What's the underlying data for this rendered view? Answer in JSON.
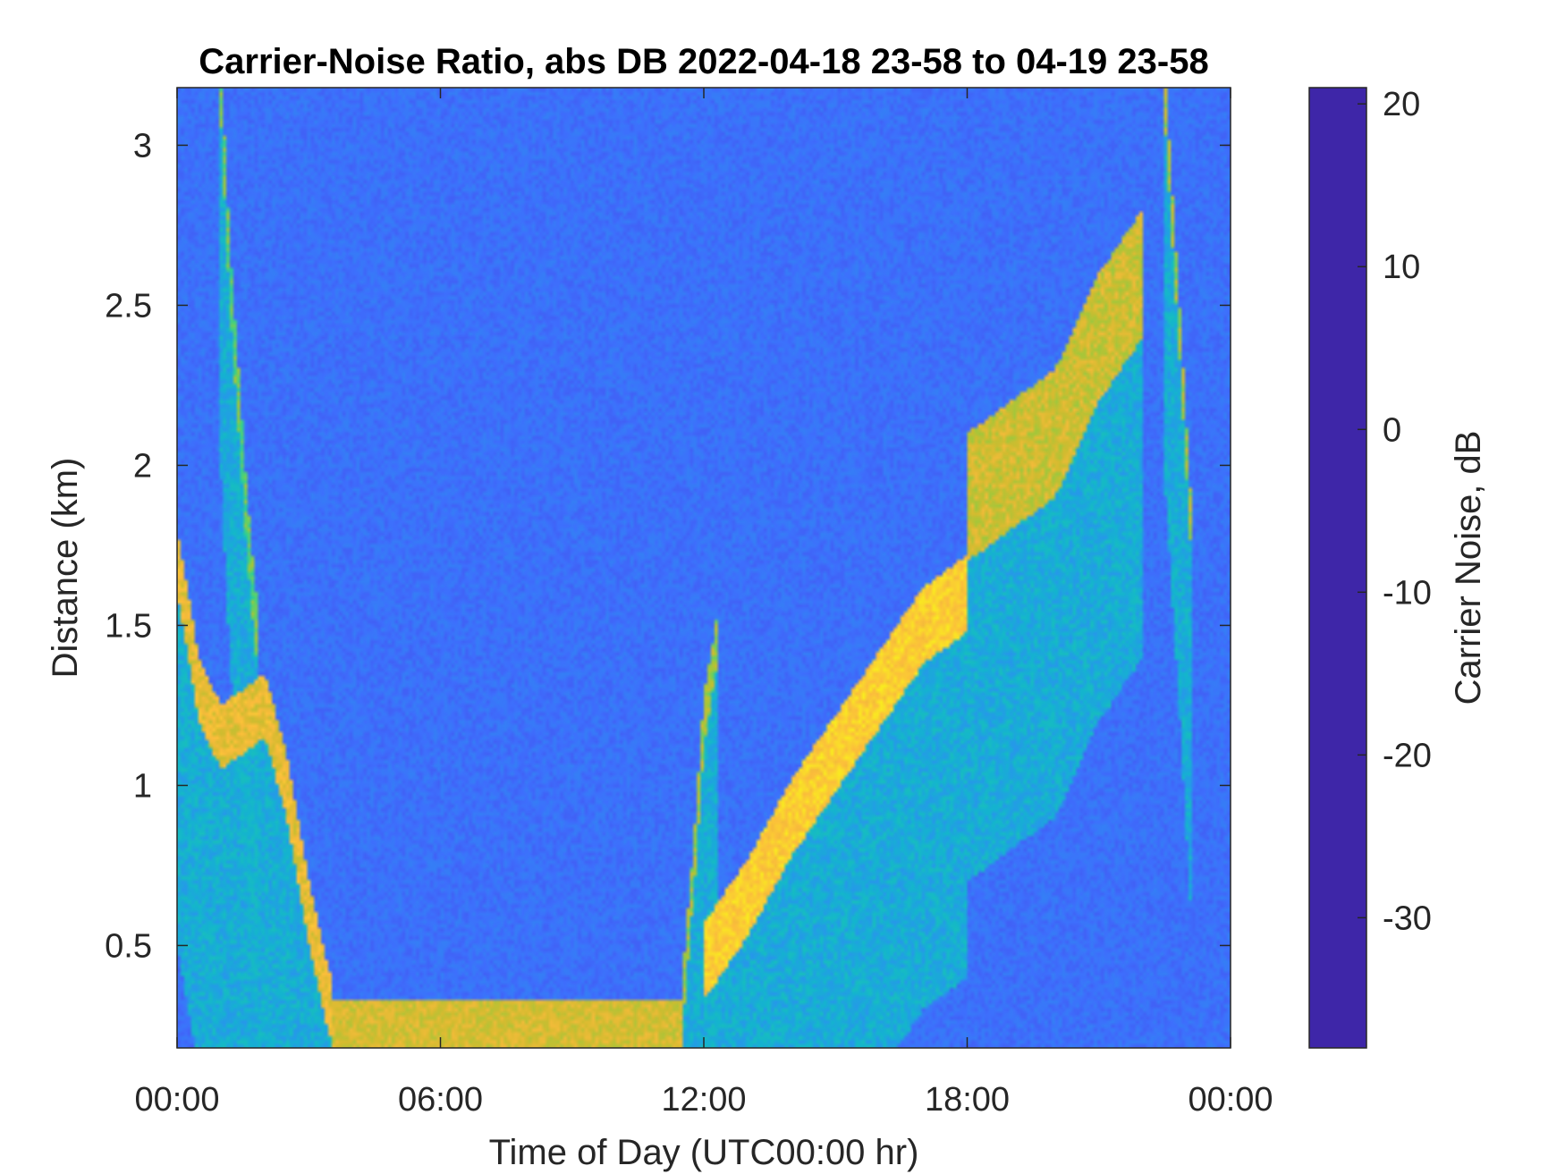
{
  "chart_data": {
    "type": "heatmap",
    "title": "Carrier-Noise Ratio, abs DB 2022-04-18 23-58 to 04-19 23-58",
    "xlabel": "Time of Day (UTC00:00 hr)",
    "ylabel": "Distance (km)",
    "colorbar_label": "Carrier Noise, dB",
    "xlim": [
      0,
      24
    ],
    "ylim": [
      0.18,
      3.18
    ],
    "clim": [
      -38,
      21
    ],
    "x_ticks": [
      0,
      6,
      12,
      18,
      24
    ],
    "x_tick_labels": [
      "00:00",
      "06:00",
      "12:00",
      "18:00",
      "00:00"
    ],
    "y_ticks": [
      0.5,
      1,
      1.5,
      2,
      2.5,
      3
    ],
    "y_tick_labels": [
      "0.5",
      "1",
      "1.5",
      "2",
      "2.5",
      "3"
    ],
    "colorbar_ticks": [
      20,
      10,
      0,
      -10,
      -20,
      -30
    ],
    "colorbar_tick_labels": [
      "20",
      "10",
      "0",
      "-10",
      "-20",
      "-30"
    ],
    "colormap": [
      "#3e26a8",
      "#4743e6",
      "#3e6ffd",
      "#2797eb",
      "#14b4cf",
      "#1ccaaa",
      "#53d270",
      "#a3c73a",
      "#d4bb2f",
      "#fcbb3d",
      "#fad42f",
      "#f9fb15"
    ],
    "background_value_db": -27,
    "features": [
      {
        "name": "early boundary layer top",
        "type": "line",
        "x": [
          0.0,
          0.5,
          1.0,
          2.0,
          2.5,
          3.0,
          3.5
        ],
        "y": [
          1.7,
          1.3,
          1.15,
          1.25,
          1.0,
          0.6,
          0.3
        ],
        "value_db": 8,
        "width_km": 0.1
      },
      {
        "name": "residual layer plume",
        "type": "line",
        "x": [
          1.0,
          1.2,
          1.4,
          1.6,
          1.8
        ],
        "y": [
          3.15,
          2.6,
          2.2,
          1.8,
          1.5
        ],
        "value_db": -5,
        "width_km": 0.1
      },
      {
        "name": "night surface layer",
        "type": "band",
        "x": [
          3.5,
          11.5
        ],
        "y": [
          0.18,
          0.33
        ],
        "value_db": 5
      },
      {
        "name": "morning rise",
        "type": "line",
        "x": [
          11.5,
          11.8,
          12.0,
          12.3
        ],
        "y": [
          0.3,
          0.8,
          1.2,
          1.45
        ],
        "value_db": 0,
        "width_km": 0.08
      },
      {
        "name": "mixed layer top",
        "type": "line",
        "x": [
          12.0,
          13.0,
          14.0,
          15.0,
          16.0,
          17.0,
          18.0
        ],
        "y": [
          0.45,
          0.65,
          0.9,
          1.1,
          1.3,
          1.5,
          1.6
        ],
        "value_db": 14,
        "width_km": 0.12
      },
      {
        "name": "afternoon layer top",
        "type": "line",
        "x": [
          18.0,
          19.0,
          20.0,
          21.0,
          22.0
        ],
        "y": [
          1.9,
          2.0,
          2.1,
          2.4,
          2.6
        ],
        "value_db": 4,
        "width_km": 0.2
      },
      {
        "name": "late evening plume",
        "type": "line",
        "x": [
          22.5,
          22.8,
          23.1
        ],
        "y": [
          3.15,
          2.5,
          1.8
        ],
        "value_db": 0,
        "width_km": 0.08
      }
    ]
  }
}
